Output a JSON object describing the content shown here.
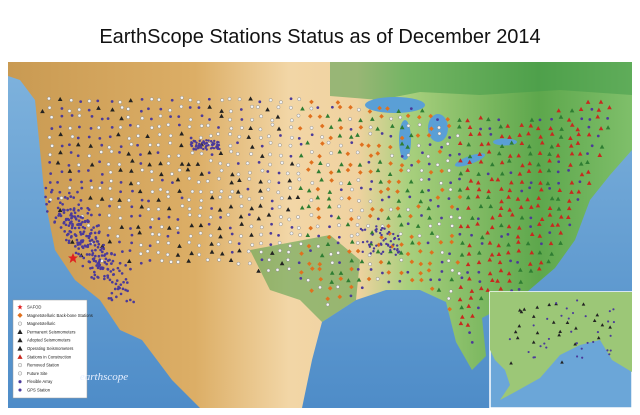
{
  "header": {
    "title": "EarthScope Stations Status as of December 2014"
  },
  "legend": {
    "items": [
      {
        "label": "SAFOD"
      },
      {
        "label": "Magnetotelluric Back-bone Stations"
      },
      {
        "label": "Magnetotelluric"
      },
      {
        "label": "Permanent Seismometers"
      },
      {
        "label": "Adopted Seismometers"
      },
      {
        "label": "Operating Seismometers"
      },
      {
        "label": "Stations in Construction"
      },
      {
        "label": "Removed Station"
      },
      {
        "label": "Future Site"
      },
      {
        "label": "Flexible Array"
      },
      {
        "label": "GPS Station"
      }
    ]
  },
  "logo": {
    "text": "earthscope"
  }
}
